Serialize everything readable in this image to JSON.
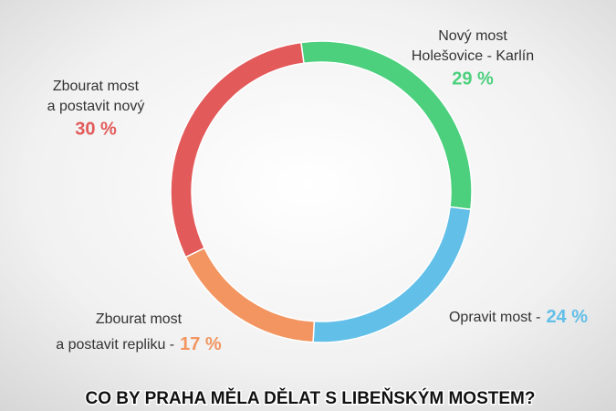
{
  "chart_data": {
    "type": "pie",
    "donut": true,
    "title": "CO BY PRAHA MĚLA DĚLAT S LIBEŇSKÝM MOSTEM?",
    "categories": [
      [
        "Nový most",
        "Holešovice - Karlín"
      ],
      [
        "Opravit most -"
      ],
      [
        "Zbourat most",
        "a postavit repliku -"
      ],
      [
        "Zbourat most",
        "a postavit nový"
      ]
    ],
    "values": [
      29,
      24,
      17,
      30
    ],
    "value_labels": [
      "29 %",
      "24 %",
      "17 %",
      "30 %"
    ],
    "colors": [
      "#4cd07d",
      "#62bfe8",
      "#f29560",
      "#e35a5a"
    ]
  }
}
